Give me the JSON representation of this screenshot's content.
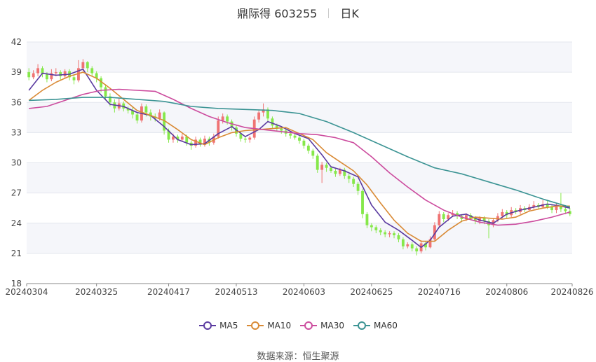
{
  "title": {
    "stock": "鼎际得 603255",
    "period": "日K"
  },
  "source_label": "数据来源：",
  "source_name": "恒生聚源",
  "colors": {
    "up": "#ef7373",
    "down": "#86e84a",
    "grid": "#e3e6ee",
    "band": "#f5f6fa",
    "ma5": "#5a3aa0",
    "ma10": "#d98a35",
    "ma30": "#cc4c9e",
    "ma60": "#3c9494"
  },
  "legend": [
    {
      "key": "ma5",
      "label": "MA5"
    },
    {
      "key": "ma10",
      "label": "MA10"
    },
    {
      "key": "ma30",
      "label": "MA30"
    },
    {
      "key": "ma60",
      "label": "MA60"
    }
  ],
  "chart_data": {
    "type": "candlestick",
    "ylim": [
      18,
      42
    ],
    "yticks": [
      18,
      21,
      24,
      27,
      30,
      33,
      36,
      39,
      42
    ],
    "grid": true,
    "legend_position": "bottom",
    "x_tick_labels": [
      "20240304",
      "20240325",
      "20240417",
      "20240513",
      "20240603",
      "20240625",
      "20240716",
      "20240806",
      "20240826"
    ],
    "x_tick_index": [
      0,
      15,
      31,
      46,
      61,
      76,
      91,
      106,
      120
    ],
    "dates_count": 121,
    "candles": [
      [
        39.0,
        38.5,
        39.4,
        38.2
      ],
      [
        38.5,
        38.9,
        39.2,
        38.3
      ],
      [
        38.9,
        39.4,
        39.8,
        38.6
      ],
      [
        39.4,
        38.8,
        39.6,
        38.5
      ],
      [
        38.8,
        38.3,
        39.0,
        38.0
      ],
      [
        38.3,
        38.9,
        39.3,
        38.1
      ],
      [
        38.9,
        39.0,
        39.4,
        38.6
      ],
      [
        39.0,
        38.6,
        39.2,
        38.2
      ],
      [
        38.6,
        39.1,
        39.3,
        38.4
      ],
      [
        39.1,
        38.5,
        39.3,
        38.2
      ],
      [
        38.5,
        38.2,
        38.8,
        37.8
      ],
      [
        38.2,
        39.4,
        40.2,
        38.0
      ],
      [
        39.4,
        40.0,
        40.3,
        39.1
      ],
      [
        40.0,
        39.4,
        40.1,
        39.0
      ],
      [
        39.4,
        38.9,
        39.6,
        38.6
      ],
      [
        38.9,
        38.4,
        39.1,
        38.0
      ],
      [
        38.4,
        37.5,
        38.6,
        37.0
      ],
      [
        37.5,
        36.6,
        37.8,
        36.2
      ],
      [
        36.6,
        36.0,
        36.9,
        35.6
      ],
      [
        36.0,
        35.4,
        36.3,
        35.0
      ],
      [
        35.4,
        35.9,
        36.4,
        35.2
      ],
      [
        35.9,
        35.4,
        36.1,
        35.1
      ],
      [
        35.4,
        35.2,
        35.6,
        34.9
      ],
      [
        35.2,
        34.8,
        35.5,
        34.4
      ],
      [
        34.8,
        34.2,
        35.0,
        33.9
      ],
      [
        34.2,
        35.6,
        35.9,
        34.0
      ],
      [
        35.6,
        35.0,
        35.8,
        34.6
      ],
      [
        35.0,
        34.6,
        35.3,
        34.2
      ],
      [
        34.6,
        34.4,
        34.9,
        34.1
      ],
      [
        34.4,
        35.0,
        35.3,
        34.2
      ],
      [
        35.0,
        33.2,
        35.1,
        32.8
      ],
      [
        33.2,
        32.3,
        33.4,
        32.0
      ],
      [
        32.3,
        32.6,
        32.9,
        32.0
      ],
      [
        32.6,
        32.3,
        32.8,
        32.0
      ],
      [
        32.3,
        32.6,
        32.9,
        32.1
      ],
      [
        32.6,
        32.0,
        32.8,
        31.7
      ],
      [
        32.0,
        31.7,
        32.2,
        31.3
      ],
      [
        31.7,
        32.3,
        32.6,
        31.5
      ],
      [
        32.3,
        31.8,
        32.5,
        31.6
      ],
      [
        31.8,
        32.4,
        32.7,
        31.6
      ],
      [
        32.4,
        32.0,
        32.6,
        31.7
      ],
      [
        32.0,
        32.6,
        32.9,
        31.8
      ],
      [
        32.6,
        34.2,
        34.6,
        32.4
      ],
      [
        34.2,
        34.6,
        34.9,
        33.9
      ],
      [
        34.6,
        34.1,
        34.8,
        33.8
      ],
      [
        34.1,
        33.5,
        34.3,
        33.2
      ],
      [
        33.5,
        32.9,
        33.7,
        32.6
      ],
      [
        32.9,
        32.4,
        33.1,
        32.1
      ],
      [
        32.4,
        32.3,
        32.6,
        32.0
      ],
      [
        32.3,
        32.5,
        32.7,
        32.0
      ],
      [
        32.5,
        34.3,
        34.6,
        32.3
      ],
      [
        34.3,
        35.0,
        35.2,
        34.0
      ],
      [
        35.0,
        35.3,
        35.9,
        34.6
      ],
      [
        35.3,
        34.4,
        35.5,
        34.0
      ],
      [
        34.4,
        33.7,
        34.6,
        33.4
      ],
      [
        33.7,
        33.4,
        33.9,
        33.1
      ],
      [
        33.4,
        33.2,
        33.6,
        32.9
      ],
      [
        33.2,
        32.9,
        33.4,
        32.6
      ],
      [
        32.9,
        32.7,
        33.1,
        32.4
      ],
      [
        32.7,
        32.5,
        32.9,
        32.3
      ],
      [
        32.5,
        32.2,
        32.7,
        31.9
      ],
      [
        32.2,
        31.7,
        32.4,
        31.4
      ],
      [
        31.7,
        31.2,
        31.9,
        30.9
      ],
      [
        31.2,
        30.7,
        31.4,
        30.4
      ],
      [
        30.7,
        29.3,
        30.9,
        29.0
      ],
      [
        29.3,
        29.8,
        30.1,
        28.0
      ],
      [
        29.8,
        29.5,
        30.0,
        29.1
      ],
      [
        29.5,
        29.2,
        29.7,
        29.0
      ],
      [
        29.2,
        28.9,
        29.4,
        28.6
      ],
      [
        28.9,
        29.3,
        29.5,
        28.7
      ],
      [
        29.3,
        28.7,
        29.5,
        28.4
      ],
      [
        28.7,
        28.4,
        28.9,
        28.0
      ],
      [
        28.4,
        27.9,
        28.6,
        27.6
      ],
      [
        27.9,
        27.2,
        28.1,
        26.8
      ],
      [
        27.2,
        24.9,
        27.4,
        24.5
      ],
      [
        24.9,
        23.8,
        25.1,
        23.5
      ],
      [
        23.8,
        23.6,
        24.0,
        23.2
      ],
      [
        23.6,
        23.3,
        23.8,
        23.0
      ],
      [
        23.3,
        23.1,
        23.5,
        22.8
      ],
      [
        23.1,
        22.9,
        23.3,
        22.6
      ],
      [
        22.9,
        23.0,
        23.2,
        22.6
      ],
      [
        23.0,
        22.8,
        23.2,
        22.5
      ],
      [
        22.8,
        22.4,
        23.0,
        22.1
      ],
      [
        22.4,
        21.7,
        22.6,
        21.4
      ],
      [
        21.7,
        21.9,
        22.1,
        21.5
      ],
      [
        21.9,
        21.5,
        22.1,
        21.2
      ],
      [
        21.5,
        21.2,
        21.7,
        20.8
      ],
      [
        21.2,
        22.0,
        22.3,
        21.0
      ],
      [
        22.0,
        21.6,
        22.2,
        21.3
      ],
      [
        21.6,
        22.4,
        22.7,
        21.5
      ],
      [
        22.4,
        23.8,
        24.1,
        22.2
      ],
      [
        23.8,
        24.9,
        25.2,
        23.6
      ],
      [
        24.9,
        24.4,
        25.1,
        24.1
      ],
      [
        24.4,
        24.8,
        25.0,
        24.2
      ],
      [
        24.8,
        25.0,
        25.3,
        24.6
      ],
      [
        25.0,
        24.7,
        25.2,
        24.4
      ],
      [
        24.7,
        24.4,
        24.9,
        24.1
      ],
      [
        24.4,
        24.8,
        25.0,
        24.2
      ],
      [
        24.8,
        24.5,
        25.0,
        24.3
      ],
      [
        24.5,
        24.2,
        24.7,
        23.9
      ],
      [
        24.2,
        24.5,
        24.7,
        23.9
      ],
      [
        24.5,
        24.2,
        24.7,
        23.9
      ],
      [
        24.2,
        23.8,
        24.4,
        22.5
      ],
      [
        23.8,
        24.3,
        24.5,
        23.6
      ],
      [
        24.3,
        24.7,
        25.0,
        24.1
      ],
      [
        24.7,
        25.1,
        25.4,
        24.5
      ],
      [
        25.1,
        24.8,
        25.3,
        24.5
      ],
      [
        24.8,
        25.3,
        25.6,
        24.6
      ],
      [
        25.3,
        25.1,
        25.5,
        24.9
      ],
      [
        25.1,
        25.5,
        25.8,
        24.9
      ],
      [
        25.5,
        25.3,
        25.7,
        25.1
      ],
      [
        25.3,
        25.6,
        25.9,
        25.2
      ],
      [
        25.6,
        25.8,
        26.2,
        25.4
      ],
      [
        25.8,
        25.6,
        26.0,
        25.4
      ],
      [
        25.6,
        25.9,
        26.3,
        25.5
      ],
      [
        25.9,
        25.6,
        26.3,
        25.4
      ],
      [
        25.6,
        25.3,
        25.9,
        25.0
      ],
      [
        25.3,
        25.7,
        26.0,
        25.0
      ],
      [
        25.7,
        25.4,
        27.0,
        25.1
      ],
      [
        25.4,
        25.2,
        25.8,
        24.9
      ],
      [
        25.2,
        24.9,
        25.5,
        24.7
      ]
    ],
    "series": [
      {
        "name": "MA5",
        "key": "ma5",
        "points": [
          [
            0,
            37.2
          ],
          [
            3,
            38.9
          ],
          [
            6,
            38.7
          ],
          [
            9,
            38.8
          ],
          [
            12,
            39.3
          ],
          [
            15,
            37.2
          ],
          [
            18,
            35.8
          ],
          [
            21,
            35.6
          ],
          [
            24,
            35.0
          ],
          [
            27,
            34.7
          ],
          [
            30,
            33.6
          ],
          [
            33,
            32.3
          ],
          [
            36,
            31.8
          ],
          [
            39,
            31.9
          ],
          [
            42,
            32.9
          ],
          [
            45,
            33.6
          ],
          [
            48,
            32.6
          ],
          [
            51,
            33.3
          ],
          [
            53,
            34.1
          ],
          [
            56,
            33.6
          ],
          [
            59,
            32.9
          ],
          [
            62,
            32.4
          ],
          [
            65,
            30.8
          ],
          [
            67,
            29.6
          ],
          [
            70,
            29.2
          ],
          [
            73,
            28.6
          ],
          [
            76,
            25.8
          ],
          [
            79,
            24.1
          ],
          [
            82,
            23.3
          ],
          [
            85,
            22.3
          ],
          [
            87,
            21.6
          ],
          [
            89,
            22.3
          ],
          [
            91,
            23.6
          ],
          [
            94,
            24.7
          ],
          [
            97,
            24.9
          ],
          [
            100,
            24.3
          ],
          [
            103,
            24.0
          ],
          [
            106,
            24.9
          ],
          [
            109,
            25.3
          ],
          [
            112,
            25.6
          ],
          [
            115,
            25.9
          ],
          [
            118,
            25.7
          ],
          [
            120,
            25.5
          ]
        ]
      },
      {
        "name": "MA10",
        "key": "ma10",
        "points": [
          [
            0,
            36.2
          ],
          [
            3,
            37.2
          ],
          [
            6,
            38.0
          ],
          [
            9,
            38.6
          ],
          [
            12,
            39.0
          ],
          [
            15,
            38.4
          ],
          [
            18,
            37.4
          ],
          [
            21,
            36.3
          ],
          [
            24,
            35.2
          ],
          [
            27,
            34.7
          ],
          [
            30,
            34.2
          ],
          [
            33,
            33.3
          ],
          [
            36,
            32.3
          ],
          [
            39,
            31.8
          ],
          [
            42,
            32.5
          ],
          [
            45,
            33.0
          ],
          [
            48,
            33.2
          ],
          [
            51,
            33.3
          ],
          [
            54,
            33.4
          ],
          [
            57,
            33.5
          ],
          [
            60,
            32.9
          ],
          [
            63,
            32.3
          ],
          [
            66,
            31.0
          ],
          [
            69,
            30.1
          ],
          [
            72,
            29.2
          ],
          [
            75,
            27.8
          ],
          [
            78,
            26.0
          ],
          [
            81,
            24.3
          ],
          [
            84,
            23.0
          ],
          [
            87,
            22.2
          ],
          [
            90,
            22.2
          ],
          [
            93,
            23.3
          ],
          [
            96,
            24.2
          ],
          [
            99,
            24.6
          ],
          [
            102,
            24.5
          ],
          [
            105,
            24.4
          ],
          [
            108,
            24.6
          ],
          [
            111,
            25.2
          ],
          [
            114,
            25.5
          ],
          [
            117,
            25.7
          ],
          [
            120,
            25.7
          ]
        ]
      },
      {
        "name": "MA30",
        "key": "ma30",
        "points": [
          [
            0,
            35.4
          ],
          [
            4,
            35.6
          ],
          [
            8,
            36.2
          ],
          [
            12,
            36.8
          ],
          [
            16,
            37.2
          ],
          [
            20,
            37.3
          ],
          [
            24,
            37.2
          ],
          [
            28,
            37.1
          ],
          [
            32,
            36.3
          ],
          [
            36,
            35.4
          ],
          [
            40,
            34.6
          ],
          [
            44,
            34.0
          ],
          [
            48,
            33.5
          ],
          [
            52,
            33.3
          ],
          [
            56,
            33.1
          ],
          [
            60,
            32.9
          ],
          [
            64,
            32.8
          ],
          [
            68,
            32.5
          ],
          [
            72,
            32.0
          ],
          [
            76,
            30.6
          ],
          [
            80,
            29.0
          ],
          [
            84,
            27.6
          ],
          [
            88,
            26.3
          ],
          [
            92,
            25.3
          ],
          [
            96,
            24.6
          ],
          [
            100,
            24.1
          ],
          [
            104,
            23.8
          ],
          [
            108,
            23.9
          ],
          [
            112,
            24.2
          ],
          [
            116,
            24.6
          ],
          [
            120,
            25.1
          ]
        ]
      },
      {
        "name": "MA60",
        "key": "ma60",
        "points": [
          [
            0,
            36.2
          ],
          [
            6,
            36.3
          ],
          [
            12,
            36.5
          ],
          [
            18,
            36.5
          ],
          [
            24,
            36.3
          ],
          [
            30,
            36.1
          ],
          [
            36,
            35.6
          ],
          [
            42,
            35.4
          ],
          [
            48,
            35.3
          ],
          [
            54,
            35.2
          ],
          [
            60,
            34.9
          ],
          [
            66,
            34.1
          ],
          [
            72,
            33.0
          ],
          [
            78,
            31.8
          ],
          [
            84,
            30.6
          ],
          [
            90,
            29.5
          ],
          [
            96,
            28.9
          ],
          [
            102,
            28.1
          ],
          [
            108,
            27.3
          ],
          [
            114,
            26.4
          ],
          [
            120,
            25.6
          ]
        ]
      }
    ]
  }
}
